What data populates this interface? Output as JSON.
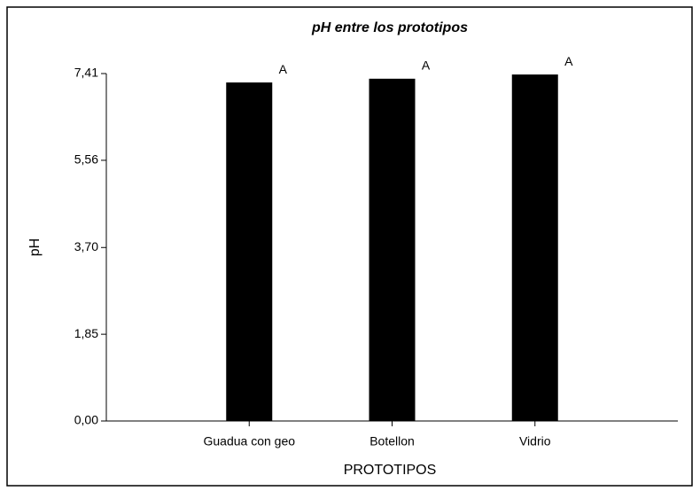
{
  "chart_data": {
    "type": "bar",
    "title": "pH entre los prototipos",
    "x_label": "PROTOTIPOS",
    "y_label": "pH",
    "categories": [
      "Guadua con geo",
      "Botellon",
      "Vidrio"
    ],
    "values": [
      7.22,
      7.3,
      7.39
    ],
    "annotations": [
      "A",
      "A",
      "A"
    ],
    "color": "#000000",
    "ylim": [
      0,
      7.41
    ],
    "yticks": [
      {
        "value": 0,
        "label": "0,00"
      },
      {
        "value": 1.85,
        "label": "1,85"
      },
      {
        "value": 3.7,
        "label": "3,70"
      },
      {
        "value": 5.56,
        "label": "5,56"
      },
      {
        "value": 7.41,
        "label": "7,41"
      }
    ],
    "grid": false
  }
}
